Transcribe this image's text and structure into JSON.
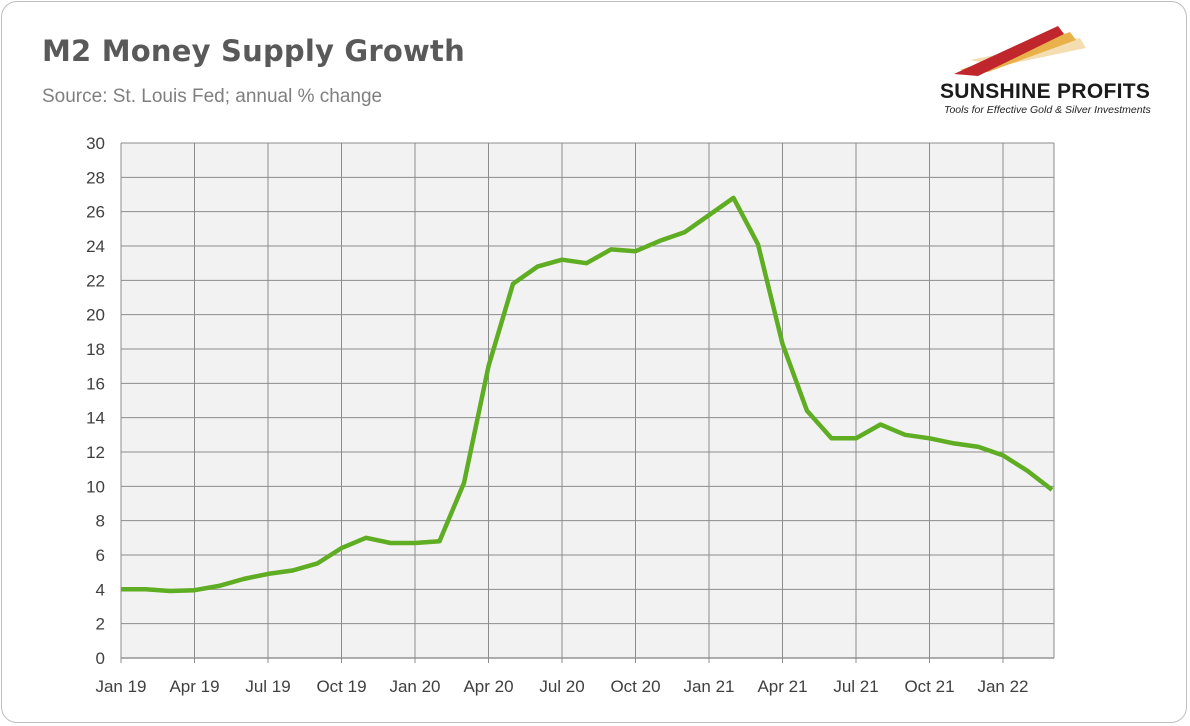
{
  "header": {
    "title": "M2 Money Supply Growth",
    "subtitle": "Source: St. Louis Fed; annual % change"
  },
  "logo": {
    "name": "SUNSHINE PROFITS",
    "tagline": "Tools for Effective Gold & Silver Investments",
    "colors": [
      "#c0272d",
      "#e8b14a",
      "#f2d9a8"
    ]
  },
  "chart_data": {
    "type": "line",
    "title": "M2 Money Supply Growth",
    "subtitle": "Source: St. Louis Fed; annual % change",
    "xlabel": "",
    "ylabel": "",
    "ylim": [
      0,
      30
    ],
    "yticks": [
      0,
      2,
      4,
      6,
      8,
      10,
      12,
      14,
      16,
      18,
      20,
      22,
      24,
      26,
      28,
      30
    ],
    "xtick_labels": [
      "Jan 19",
      "Apr 19",
      "Jul 19",
      "Oct 19",
      "Jan 20",
      "Apr 20",
      "Jul 20",
      "Oct 20",
      "Jan 21",
      "Apr 21",
      "Jul 21",
      "Oct 21",
      "Jan 22"
    ],
    "grid": true,
    "legend": "none",
    "series": [
      {
        "color": "#5fad22",
        "x": [
          "Jan 19",
          "Feb 19",
          "Mar 19",
          "Apr 19",
          "May 19",
          "Jun 19",
          "Jul 19",
          "Aug 19",
          "Sep 19",
          "Oct 19",
          "Nov 19",
          "Dec 19",
          "Jan 20",
          "Feb 20",
          "Mar 20",
          "Apr 20",
          "May 20",
          "Jun 20",
          "Jul 20",
          "Aug 20",
          "Sep 20",
          "Oct 20",
          "Nov 20",
          "Dec 20",
          "Jan 21",
          "Feb 21",
          "Mar 21",
          "Apr 21",
          "May 21",
          "Jun 21",
          "Jul 21",
          "Aug 21",
          "Sep 21",
          "Oct 21",
          "Nov 21",
          "Dec 21",
          "Jan 22",
          "Feb 22",
          "Mar 22"
        ],
        "values": [
          4.0,
          4.0,
          3.9,
          3.95,
          4.2,
          4.6,
          4.9,
          5.1,
          5.5,
          6.4,
          7.0,
          6.7,
          6.7,
          6.8,
          10.2,
          17.0,
          21.8,
          22.8,
          23.2,
          23.0,
          23.8,
          23.7,
          24.3,
          24.8,
          25.8,
          26.8,
          24.1,
          18.3,
          14.4,
          12.8,
          12.8,
          13.6,
          13.0,
          12.8,
          12.5,
          12.3,
          11.8,
          10.9,
          9.8
        ]
      }
    ]
  }
}
